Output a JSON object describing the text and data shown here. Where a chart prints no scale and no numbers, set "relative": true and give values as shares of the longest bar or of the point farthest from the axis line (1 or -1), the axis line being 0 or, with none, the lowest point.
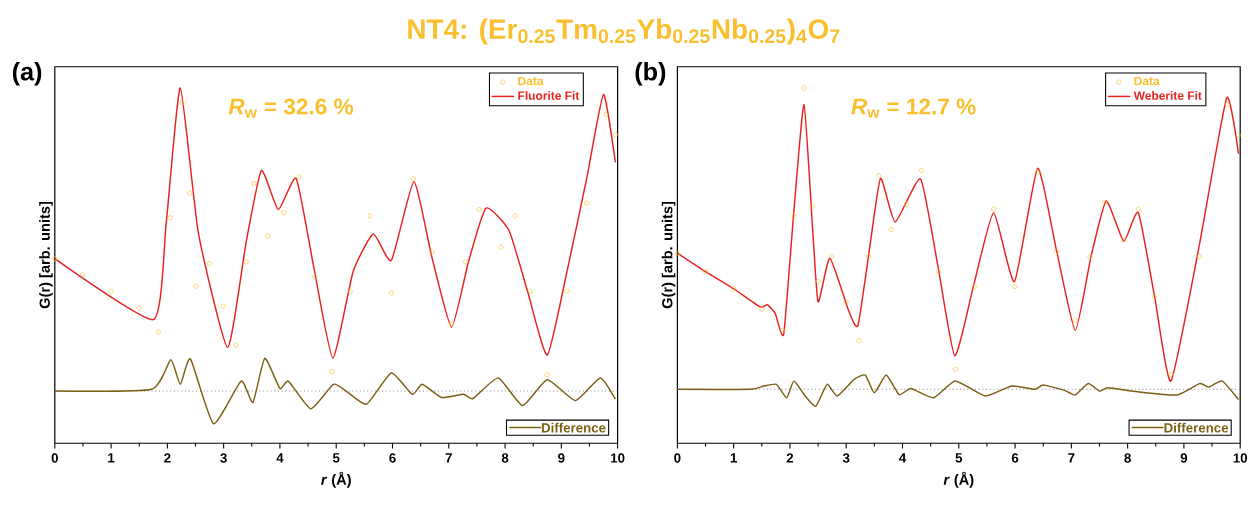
{
  "chart_data": [
    {
      "type": "line",
      "title": "NT4: (Er$_{0.25}$Tm$_{0.25}$Yb$_{0.25}$Nb$_{0.25}$)$_{4}$O$_{7}$",
      "xlabel": "*r* (Å)",
      "ylabel": "G(r) [arb. units]",
      "annotations": [
        "(a)",
        "*R*$_{w}$ = 32.6 %"
      ],
      "relative": true,
      "xlim": [
        0,
        10
      ],
      "xticks": [
        0,
        1,
        2,
        3,
        4,
        5,
        6,
        7,
        8,
        9,
        10
      ],
      "legend": "top right",
      "ref_lines": [
        {
          "axis": "y",
          "value": 0.147,
          "color": "#8c8c8c",
          "line_style": "dotted"
        }
      ],
      "series": [
        {
          "name": "Data",
          "type": "scatter",
          "marker": "circle",
          "color": "#f9bf2e",
          "x": [
            0,
            0.5,
            1.0,
            1.5,
            1.84,
            2.05,
            2.26,
            2.4,
            2.51,
            2.75,
            3.0,
            3.22,
            3.4,
            3.54,
            3.78,
            4.07,
            4.34,
            4.62,
            4.92,
            5.25,
            5.6,
            5.98,
            6.37,
            6.7,
            7.05,
            7.3,
            7.54,
            7.93,
            8.18,
            8.45,
            8.75,
            9.1,
            9.45,
            9.79,
            9.96
          ],
          "values": [
            0.52,
            0.475,
            0.428,
            0.381,
            0.313,
            0.635,
            0.958,
            0.704,
            0.442,
            0.506,
            0.386,
            0.276,
            0.511,
            0.731,
            0.584,
            0.649,
            0.75,
            0.469,
            0.202,
            0.428,
            0.64,
            0.423,
            0.745,
            0.538,
            0.336,
            0.511,
            0.658,
            0.552,
            0.64,
            0.428,
            0.193,
            0.428,
            0.676,
            0.925,
            0.869
          ]
        },
        {
          "name": "Fluorite Fit",
          "marker": "none",
          "color": "#e8231f",
          "x": [
            0,
            1.75,
            1.98,
            2.23,
            2.55,
            3.07,
            3.4,
            3.67,
            3.97,
            4.29,
            4.6,
            4.94,
            5.3,
            5.66,
            5.98,
            6.38,
            6.7,
            7.05,
            7.35,
            7.66,
            8.07,
            8.4,
            8.75,
            9.1,
            9.45,
            9.75,
            9.96
          ],
          "values": [
            0.52,
            0.348,
            0.621,
            1.0,
            0.593,
            0.27,
            0.566,
            0.768,
            0.658,
            0.745,
            0.497,
            0.24,
            0.483,
            0.589,
            0.515,
            0.736,
            0.524,
            0.327,
            0.511,
            0.662,
            0.599,
            0.428,
            0.248,
            0.483,
            0.745,
            0.982,
            0.791
          ]
        },
        {
          "name": "Difference",
          "marker": "none",
          "color": "#7a5f14",
          "x": [
            0,
            1.72,
            2.06,
            2.23,
            2.41,
            2.82,
            3.31,
            3.52,
            3.73,
            4.0,
            4.15,
            4.55,
            4.95,
            5.2,
            5.54,
            5.98,
            6.35,
            6.53,
            6.87,
            7.26,
            7.43,
            7.88,
            8.31,
            8.75,
            9.25,
            9.69,
            9.96
          ],
          "values": [
            0.147,
            0.152,
            0.235,
            0.166,
            0.237,
            0.055,
            0.175,
            0.115,
            0.239,
            0.154,
            0.175,
            0.097,
            0.166,
            0.144,
            0.11,
            0.198,
            0.138,
            0.166,
            0.129,
            0.138,
            0.126,
            0.184,
            0.106,
            0.179,
            0.12,
            0.184,
            0.124
          ]
        }
      ]
    },
    {
      "type": "line",
      "xlabel": "*r* (Å)",
      "ylabel": "G(r) [arb. units]",
      "annotations": [
        "(b)",
        "*R*$_{w}$ = 12.7 %"
      ],
      "relative": true,
      "xlim": [
        0,
        10
      ],
      "xticks": [
        0,
        1,
        2,
        3,
        4,
        5,
        6,
        7,
        8,
        9,
        10
      ],
      "legend": "top right",
      "ref_lines": [
        {
          "axis": "y",
          "value": 0.152,
          "color": "#8c8c8c",
          "line_style": "dotted"
        }
      ],
      "series": [
        {
          "name": "Data",
          "type": "scatter",
          "marker": "circle",
          "color": "#f9bf2e",
          "x": [
            0,
            0.5,
            1.0,
            1.5,
            1.87,
            2.07,
            2.25,
            2.4,
            2.5,
            2.74,
            3.0,
            3.23,
            3.4,
            3.58,
            3.8,
            4.07,
            4.34,
            4.64,
            4.94,
            5.28,
            5.62,
            5.99,
            6.4,
            6.74,
            7.07,
            7.33,
            7.59,
            7.93,
            8.19,
            8.48,
            8.77,
            9.27,
            9.77,
            9.97
          ],
          "values": [
            0.535,
            0.483,
            0.435,
            0.378,
            0.318,
            0.64,
            1.0,
            0.668,
            0.455,
            0.526,
            0.398,
            0.289,
            0.526,
            0.753,
            0.602,
            0.673,
            0.768,
            0.483,
            0.208,
            0.441,
            0.659,
            0.441,
            0.763,
            0.54,
            0.346,
            0.526,
            0.678,
            0.572,
            0.659,
            0.412,
            0.194,
            0.526,
            0.953,
            0.867
          ]
        },
        {
          "name": "Weberite Fit",
          "marker": "none",
          "color": "#e8231f",
          "x": [
            0,
            0.5,
            1.0,
            1.47,
            1.6,
            1.74,
            1.89,
            2.07,
            2.25,
            2.4,
            2.5,
            2.71,
            3.05,
            3.21,
            3.42,
            3.61,
            3.87,
            4.32,
            4.63,
            4.93,
            5.28,
            5.62,
            5.99,
            6.4,
            6.74,
            7.07,
            7.35,
            7.62,
            7.93,
            8.19,
            8.48,
            8.77,
            9.27,
            9.76,
            9.97
          ],
          "values": [
            0.535,
            0.483,
            0.435,
            0.384,
            0.39,
            0.365,
            0.308,
            0.654,
            0.953,
            0.611,
            0.398,
            0.521,
            0.37,
            0.332,
            0.554,
            0.746,
            0.623,
            0.744,
            0.498,
            0.246,
            0.455,
            0.649,
            0.455,
            0.774,
            0.54,
            0.318,
            0.526,
            0.682,
            0.569,
            0.649,
            0.412,
            0.175,
            0.554,
            0.972,
            0.815
          ]
        },
        {
          "name": "Difference",
          "marker": "none",
          "color": "#7a5f14",
          "x": [
            0,
            1.3,
            1.53,
            1.76,
            1.94,
            2.07,
            2.27,
            2.46,
            2.66,
            2.84,
            3.14,
            3.34,
            3.5,
            3.71,
            3.94,
            4.15,
            4.55,
            4.94,
            5.47,
            5.94,
            6.35,
            6.5,
            6.88,
            7.07,
            7.3,
            7.5,
            7.65,
            8.18,
            8.88,
            9.28,
            9.44,
            9.68,
            9.97
          ],
          "values": [
            0.152,
            0.152,
            0.161,
            0.166,
            0.128,
            0.175,
            0.133,
            0.104,
            0.166,
            0.133,
            0.18,
            0.192,
            0.142,
            0.192,
            0.137,
            0.154,
            0.128,
            0.175,
            0.133,
            0.161,
            0.152,
            0.164,
            0.149,
            0.136,
            0.168,
            0.147,
            0.156,
            0.145,
            0.136,
            0.168,
            0.158,
            0.175,
            0.123
          ]
        }
      ]
    }
  ]
}
